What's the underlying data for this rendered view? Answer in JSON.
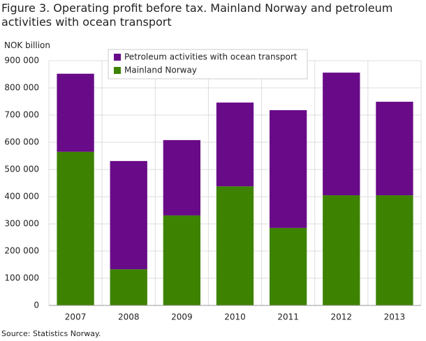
{
  "chart_data": {
    "type": "stacked_bar",
    "title": "Figure 3. Operating profit before tax. Mainland Norway and petroleum activities with ocean transport",
    "y_label": "NOK billion",
    "source": "Source: Statistics Norway.",
    "categories": [
      "2007",
      "2008",
      "2009",
      "2010",
      "2011",
      "2012",
      "2013"
    ],
    "series": [
      {
        "name": "Mainland Norway",
        "color": "#3d8200",
        "values": [
          565000,
          133000,
          331000,
          438000,
          285000,
          405000,
          405000
        ]
      },
      {
        "name": "Petroleum activities with ocean transport",
        "color": "#690a88",
        "values": [
          287000,
          398000,
          277000,
          308000,
          433000,
          451000,
          344000
        ]
      }
    ],
    "ylim": [
      0,
      900000
    ],
    "yticks": [
      0,
      {
        "value": 100000,
        "label": "100 000"
      },
      {
        "value": 200000,
        "label": "200 000"
      },
      {
        "value": 300000,
        "label": "300 000"
      },
      {
        "value": 400000,
        "label": "400 000"
      },
      {
        "value": 500000,
        "label": "500 000"
      },
      {
        "value": 600000,
        "label": "600 000"
      },
      {
        "value": 700000,
        "label": "700 000"
      },
      {
        "value": 800000,
        "label": "800 000"
      },
      {
        "value": 900000,
        "label": "900 000"
      }
    ],
    "grid": true
  }
}
